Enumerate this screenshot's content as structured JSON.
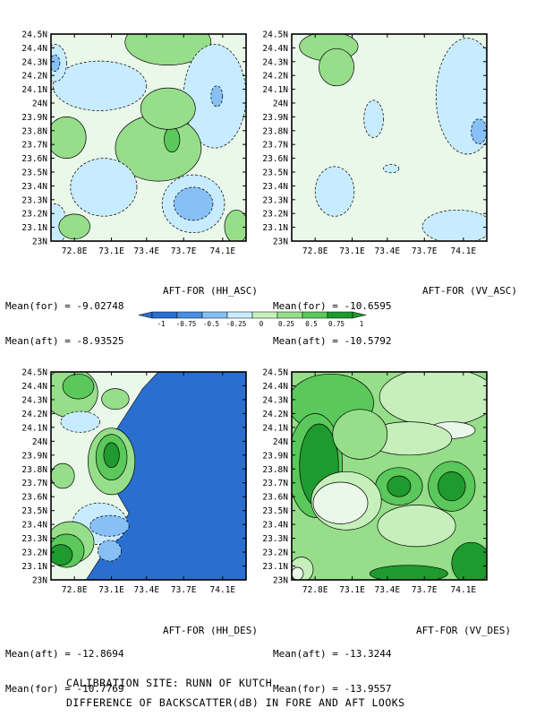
{
  "chart_data": {
    "type": "heatmap",
    "y_ticks": [
      "23N",
      "23.1N",
      "23.2N",
      "23.3N",
      "23.4N",
      "23.5N",
      "23.6N",
      "23.7N",
      "23.8N",
      "23.9N",
      "24N",
      "24.1N",
      "24.2N",
      "24.3N",
      "24.4N",
      "24.5N"
    ],
    "x_ticks": [
      "72.8E",
      "73.1E",
      "73.4E",
      "73.7E",
      "74.1E"
    ],
    "ylim": [
      23,
      24.5
    ],
    "colorbar": {
      "labels": [
        "-1",
        "-0.75",
        "-0.5",
        "-0.25",
        "0",
        "0.25",
        "0.5",
        "0.75",
        "1"
      ],
      "colors": [
        "#2a6fd0",
        "#4a8fe0",
        "#86c0f4",
        "#c8ecff",
        "#eaf8ea",
        "#c6efbc",
        "#96de8a",
        "#5ac85a",
        "#1e9a2e"
      ]
    },
    "panels": [
      {
        "title": "AFT-FOR (HH_ASC)",
        "stats": [
          {
            "label": "Mean(for)",
            "value": "-9.02748"
          },
          {
            "label": "Mean(aft)",
            "value": "-8.93525"
          }
        ],
        "base_color": "#eaf8ea",
        "regions": [
          {
            "bin": 0.75,
            "cx": 0.58,
            "cy": 0.05,
            "rx": 0.14,
            "ry": 0.07
          },
          {
            "bin": 0.5,
            "cx": 0.6,
            "cy": 0.04,
            "rx": 0.22,
            "ry": 0.11
          },
          {
            "bin": -0.25,
            "cx": 0.84,
            "cy": 0.3,
            "rx": 0.16,
            "ry": 0.25
          },
          {
            "bin": -0.5,
            "cx": 0.85,
            "cy": 0.3,
            "rx": 0.03,
            "ry": 0.05
          },
          {
            "bin": -0.25,
            "cx": 0.25,
            "cy": 0.25,
            "rx": 0.24,
            "ry": 0.12
          },
          {
            "bin": -0.25,
            "cx": 0.02,
            "cy": 0.14,
            "rx": 0.06,
            "ry": 0.09
          },
          {
            "bin": -0.5,
            "cx": 0.02,
            "cy": 0.14,
            "rx": 0.025,
            "ry": 0.04
          },
          {
            "bin": 0.5,
            "cx": 0.08,
            "cy": 0.5,
            "rx": 0.1,
            "ry": 0.1
          },
          {
            "bin": 0.5,
            "cx": 0.55,
            "cy": 0.55,
            "rx": 0.22,
            "ry": 0.16
          },
          {
            "bin": 0.75,
            "cx": 0.62,
            "cy": 0.51,
            "rx": 0.04,
            "ry": 0.06
          },
          {
            "bin": 0.5,
            "cx": 0.6,
            "cy": 0.36,
            "rx": 0.14,
            "ry": 0.1
          },
          {
            "bin": -0.25,
            "cx": 0.27,
            "cy": 0.74,
            "rx": 0.17,
            "ry": 0.14
          },
          {
            "bin": -0.25,
            "cx": 0.73,
            "cy": 0.82,
            "rx": 0.16,
            "ry": 0.14
          },
          {
            "bin": -0.5,
            "cx": 0.73,
            "cy": 0.82,
            "rx": 0.1,
            "ry": 0.08
          },
          {
            "bin": -0.25,
            "cx": 0.02,
            "cy": 0.92,
            "rx": 0.06,
            "ry": 0.1
          },
          {
            "bin": 0.5,
            "cx": 0.12,
            "cy": 0.93,
            "rx": 0.08,
            "ry": 0.06
          },
          {
            "bin": 0.5,
            "cx": 0.95,
            "cy": 0.93,
            "rx": 0.06,
            "ry": 0.08
          }
        ]
      },
      {
        "title": "AFT-FOR (VV_ASC)",
        "stats": [
          {
            "label": "Mean(for)",
            "value": "-10.6595"
          },
          {
            "label": "Mean(aft)",
            "value": "-10.5792"
          }
        ],
        "base_color": "#eaf8ea",
        "regions": [
          {
            "bin": 0.5,
            "cx": 0.19,
            "cy": 0.06,
            "rx": 0.15,
            "ry": 0.07
          },
          {
            "bin": 0.5,
            "cx": 0.23,
            "cy": 0.16,
            "rx": 0.09,
            "ry": 0.09
          },
          {
            "bin": -0.25,
            "cx": 0.9,
            "cy": 0.3,
            "rx": 0.16,
            "ry": 0.28
          },
          {
            "bin": -0.5,
            "cx": 0.96,
            "cy": 0.47,
            "rx": 0.04,
            "ry": 0.06
          },
          {
            "bin": -0.25,
            "cx": 0.42,
            "cy": 0.41,
            "rx": 0.05,
            "ry": 0.09
          },
          {
            "bin": -0.25,
            "cx": 0.22,
            "cy": 0.76,
            "rx": 0.1,
            "ry": 0.12
          },
          {
            "bin": -0.25,
            "cx": 0.51,
            "cy": 0.65,
            "rx": 0.04,
            "ry": 0.02
          },
          {
            "bin": -0.25,
            "cx": 0.85,
            "cy": 0.93,
            "rx": 0.18,
            "ry": 0.08
          }
        ]
      },
      {
        "title": "AFT-FOR (HH_DES)",
        "stats": [
          {
            "label": "Mean(aft)",
            "value": "-12.8694"
          },
          {
            "label": "Mean(for)",
            "value": "-10.7769"
          }
        ],
        "base_color": "#eaf8ea",
        "regions": [
          {
            "bin": 0.5,
            "cx": 0.1,
            "cy": 0.1,
            "rx": 0.14,
            "ry": 0.12
          },
          {
            "bin": 0.75,
            "cx": 0.14,
            "cy": 0.07,
            "rx": 0.08,
            "ry": 0.06
          },
          {
            "bin": 0.5,
            "cx": 0.33,
            "cy": 0.13,
            "rx": 0.07,
            "ry": 0.05
          },
          {
            "bin": -0.25,
            "cx": 0.15,
            "cy": 0.24,
            "rx": 0.1,
            "ry": 0.05
          },
          {
            "bin": 0.5,
            "cx": 0.31,
            "cy": 0.43,
            "rx": 0.12,
            "ry": 0.16
          },
          {
            "bin": 0.75,
            "cx": 0.31,
            "cy": 0.41,
            "rx": 0.08,
            "ry": 0.11
          },
          {
            "bin": 1,
            "cx": 0.31,
            "cy": 0.4,
            "rx": 0.04,
            "ry": 0.06
          },
          {
            "bin": 0.5,
            "cx": 0.06,
            "cy": 0.5,
            "rx": 0.06,
            "ry": 0.06
          },
          {
            "bin": -0.25,
            "cx": 0.25,
            "cy": 0.73,
            "rx": 0.14,
            "ry": 0.1
          },
          {
            "bin": -0.5,
            "cx": 0.3,
            "cy": 0.74,
            "rx": 0.1,
            "ry": 0.05
          },
          {
            "bin": 0.5,
            "cx": 0.1,
            "cy": 0.82,
            "rx": 0.12,
            "ry": 0.1
          },
          {
            "bin": 0.75,
            "cx": 0.08,
            "cy": 0.86,
            "rx": 0.09,
            "ry": 0.08
          },
          {
            "bin": 1,
            "cx": 0.05,
            "cy": 0.88,
            "rx": 0.06,
            "ry": 0.05
          },
          {
            "bin": -0.5,
            "cx": 0.3,
            "cy": 0.86,
            "rx": 0.06,
            "ry": 0.05
          }
        ],
        "mask_region": {
          "bin": -1,
          "label": "lower limit region"
        }
      },
      {
        "title": "AFT-FOR (VV_DES)",
        "stats": [
          {
            "label": "Mean(aft)",
            "value": "-13.3244"
          },
          {
            "label": "Mean(for)",
            "value": "-13.9557"
          }
        ],
        "base_color": "#96de8a",
        "regions": [
          {
            "bin": 0.75,
            "cx": 0.2,
            "cy": 0.15,
            "rx": 0.22,
            "ry": 0.14
          },
          {
            "bin": 0.75,
            "cx": 0.12,
            "cy": 0.45,
            "rx": 0.14,
            "ry": 0.25
          },
          {
            "bin": 1,
            "cx": 0.14,
            "cy": 0.45,
            "rx": 0.1,
            "ry": 0.2
          },
          {
            "bin": 0.25,
            "cx": 0.75,
            "cy": 0.12,
            "rx": 0.3,
            "ry": 0.14
          },
          {
            "bin": 0,
            "cx": 0.82,
            "cy": 0.28,
            "rx": 0.12,
            "ry": 0.04
          },
          {
            "bin": 0.25,
            "cx": 0.6,
            "cy": 0.32,
            "rx": 0.22,
            "ry": 0.08
          },
          {
            "bin": 0.5,
            "cx": 0.35,
            "cy": 0.3,
            "rx": 0.14,
            "ry": 0.12
          },
          {
            "bin": 0.75,
            "cx": 0.55,
            "cy": 0.55,
            "rx": 0.12,
            "ry": 0.09
          },
          {
            "bin": 1,
            "cx": 0.55,
            "cy": 0.55,
            "rx": 0.06,
            "ry": 0.05
          },
          {
            "bin": 0.75,
            "cx": 0.82,
            "cy": 0.55,
            "rx": 0.12,
            "ry": 0.12
          },
          {
            "bin": 1,
            "cx": 0.82,
            "cy": 0.55,
            "rx": 0.07,
            "ry": 0.07
          },
          {
            "bin": 0.25,
            "cx": 0.28,
            "cy": 0.62,
            "rx": 0.18,
            "ry": 0.14
          },
          {
            "bin": 0,
            "cx": 0.25,
            "cy": 0.63,
            "rx": 0.14,
            "ry": 0.1
          },
          {
            "bin": 0.25,
            "cx": 0.64,
            "cy": 0.74,
            "rx": 0.2,
            "ry": 0.1
          },
          {
            "bin": 0.25,
            "cx": 0.05,
            "cy": 0.95,
            "rx": 0.06,
            "ry": 0.06
          },
          {
            "bin": 0,
            "cx": 0.03,
            "cy": 0.97,
            "rx": 0.03,
            "ry": 0.03
          },
          {
            "bin": 1,
            "cx": 0.92,
            "cy": 0.92,
            "rx": 0.1,
            "ry": 0.1
          },
          {
            "bin": 1,
            "cx": 0.6,
            "cy": 0.97,
            "rx": 0.2,
            "ry": 0.04
          }
        ]
      }
    ]
  },
  "caption": {
    "line1": "CALIBRATION SITE: RUNN OF KUTCH",
    "line2": "DIFFERENCE OF BACKSCATTER(dB) IN FORE AND AFT LOOKS"
  }
}
